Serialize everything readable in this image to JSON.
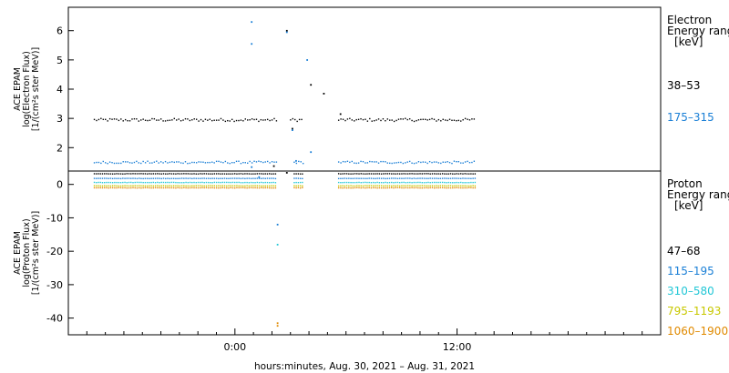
{
  "chart_data": [
    {
      "type": "scatter",
      "panel": "electron",
      "ylabel_lines": [
        "ACE EPAM",
        "log(Electron Flux)",
        "[1/(cm²s ster MeV)]"
      ],
      "ylim": [
        1.2,
        6.8
      ],
      "yticks": [
        2,
        3,
        4,
        5,
        6
      ],
      "xlim_hours": [
        -9,
        23
      ],
      "legend": {
        "title_lines": [
          "Electron",
          "Energy range",
          "[keV]"
        ],
        "entries": [
          {
            "label": "38–53",
            "color": "#000000"
          },
          {
            "label": "175–315",
            "color": "#1a7fd6"
          }
        ]
      },
      "series": [
        {
          "name": "38–53",
          "color": "#000000",
          "base": 2.95,
          "jitter": 0.05,
          "segments": [
            [
              -7.6,
              2.3
            ],
            [
              3.0,
              3.7
            ],
            [
              5.6,
              13.0
            ]
          ],
          "points": [
            [
              2.8,
              6.0
            ],
            [
              3.1,
              2.65
            ],
            [
              4.1,
              4.15
            ],
            [
              4.8,
              3.85
            ],
            [
              5.7,
              3.15
            ]
          ]
        },
        {
          "name": "175–315",
          "color": "#1a7fd6",
          "base": 1.5,
          "jitter": 0.04,
          "segments": [
            [
              -7.6,
              2.3
            ],
            [
              3.2,
              3.7
            ],
            [
              5.6,
              13.0
            ]
          ],
          "points": [
            [
              0.9,
              6.3
            ],
            [
              0.9,
              5.55
            ],
            [
              2.8,
              5.95
            ],
            [
              3.1,
              2.6
            ],
            [
              3.9,
              5.0
            ],
            [
              4.1,
              1.85
            ],
            [
              3.3,
              1.55
            ]
          ]
        }
      ]
    },
    {
      "type": "scatter",
      "panel": "proton",
      "ylabel_lines": [
        "ACE EPAM",
        "log(Proton Flux)",
        "[1/(cm²s ster MeV)]"
      ],
      "ylim": [
        -45,
        4
      ],
      "yticks": [
        0,
        -10,
        -20,
        -30,
        -40
      ],
      "xlim_hours": [
        -9,
        23
      ],
      "legend": {
        "title_lines": [
          "Proton",
          "Energy range",
          "[keV]"
        ],
        "entries": [
          {
            "label": "47–68",
            "color": "#000000"
          },
          {
            "label": "115–195",
            "color": "#1a7fd6"
          },
          {
            "label": "310–580",
            "color": "#22c7d6"
          },
          {
            "label": "795–1193",
            "color": "#c8c800"
          },
          {
            "label": "1060–1900",
            "color": "#e08a00"
          }
        ]
      },
      "series": [
        {
          "name": "47–68",
          "color": "#000000",
          "base": 3.2,
          "segments": [
            [
              -7.6,
              2.3
            ],
            [
              3.2,
              3.7
            ],
            [
              5.6,
              13.0
            ]
          ],
          "points": [
            [
              2.1,
              5.5
            ],
            [
              2.8,
              3.5
            ]
          ]
        },
        {
          "name": "115–195",
          "color": "#1a7fd6",
          "base": 1.8,
          "segments": [
            [
              -7.6,
              2.3
            ],
            [
              3.2,
              3.7
            ],
            [
              5.6,
              13.0
            ]
          ],
          "points": [
            [
              0.9,
              5.2
            ],
            [
              1.3,
              2.2
            ],
            [
              2.3,
              -12.0
            ]
          ]
        },
        {
          "name": "310–580",
          "color": "#22c7d6",
          "base": 0.6,
          "segments": [
            [
              -7.6,
              2.3
            ],
            [
              3.2,
              3.7
            ],
            [
              5.6,
              13.0
            ]
          ],
          "points": [
            [
              2.3,
              -18.0
            ]
          ]
        },
        {
          "name": "795–1193",
          "color": "#c8c800",
          "base": -0.4,
          "segments": [
            [
              -7.6,
              2.3
            ],
            [
              3.2,
              3.7
            ],
            [
              5.6,
              13.0
            ]
          ],
          "points": []
        },
        {
          "name": "1060–1900",
          "color": "#e08a00",
          "base": -1.0,
          "segments": [
            [
              -7.6,
              2.3
            ],
            [
              3.2,
              3.7
            ],
            [
              5.6,
              13.0
            ]
          ],
          "points": [
            [
              2.3,
              -41.5
            ],
            [
              2.3,
              -42.3
            ]
          ]
        }
      ]
    }
  ],
  "x_axis": {
    "ticks": [
      {
        "hour": 0,
        "label": "0:00"
      },
      {
        "hour": 12,
        "label": "12:00"
      }
    ],
    "title": "hours:minutes, Aug. 30, 2021 – Aug. 31, 2021"
  }
}
